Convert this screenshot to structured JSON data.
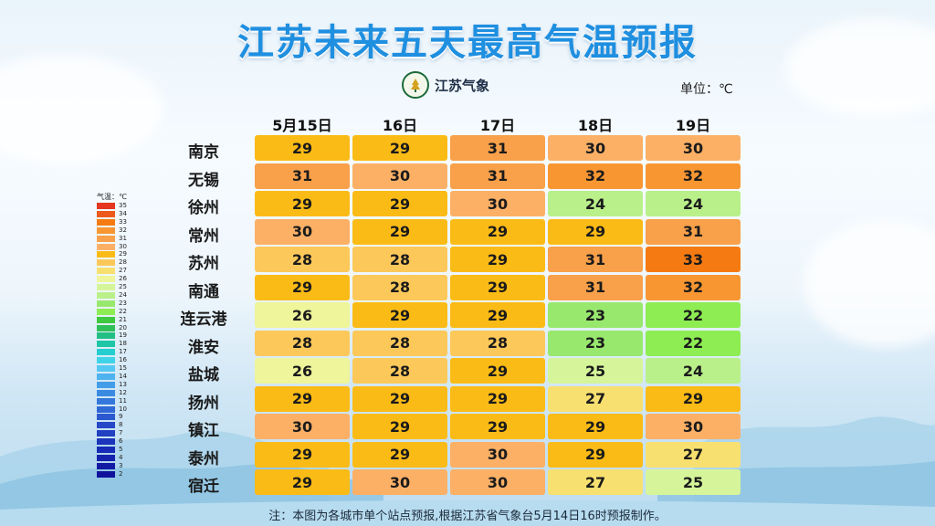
{
  "title": "江苏未来五天最高气温预报",
  "logo_text": "江苏气象",
  "unit_label": "单位：℃",
  "footnote": "注：本图为各城市单个站点预报,根据江苏省气象台5月14日16时预报制作。",
  "legend": {
    "title": "气温：℃",
    "ticks": [
      "35",
      "34",
      "33",
      "32",
      "31",
      "30",
      "29",
      "28",
      "27",
      "26",
      "25",
      "24",
      "23",
      "22",
      "21",
      "20",
      "19",
      "18",
      "17",
      "16",
      "15",
      "14",
      "13",
      "12",
      "11",
      "10",
      "9",
      "8",
      "7",
      "6",
      "5",
      "4",
      "3",
      "2"
    ]
  },
  "colors": {
    "35": "#e5361f",
    "34": "#ee5a1c",
    "33": "#f57a12",
    "32": "#f89632",
    "31": "#f8a04a",
    "30": "#fbb066",
    "29": "#fbbb16",
    "28": "#fcc85a",
    "27": "#f8e070",
    "26": "#eef59a",
    "25": "#d6f59a",
    "24": "#b9f08a",
    "23": "#98e86e",
    "22": "#8ded52",
    "21": "#3ec93e",
    "20": "#2fc05a",
    "19": "#22bf85",
    "18": "#1fc6a6",
    "17": "#25cfd0",
    "16": "#3fd4e8",
    "15": "#54c8f2",
    "14": "#4fb3ef",
    "13": "#449de8",
    "12": "#3a8ae2",
    "11": "#3578dc",
    "10": "#3068d6",
    "9": "#2b58cf",
    "8": "#2648c8",
    "7": "#2140c2",
    "6": "#1c35bc",
    "5": "#182bb6",
    "4": "#1522ad",
    "3": "#121aa4",
    "2": "#0f139b"
  },
  "columns": [
    "5月15日",
    "16日",
    "17日",
    "18日",
    "19日"
  ],
  "rows": [
    {
      "city": "南京",
      "temps": [
        "29",
        "29",
        "31",
        "30",
        "30"
      ]
    },
    {
      "city": "无锡",
      "temps": [
        "31",
        "30",
        "31",
        "32",
        "32"
      ]
    },
    {
      "city": "徐州",
      "temps": [
        "29",
        "29",
        "30",
        "24",
        "24"
      ]
    },
    {
      "city": "常州",
      "temps": [
        "30",
        "29",
        "29",
        "29",
        "31"
      ]
    },
    {
      "city": "苏州",
      "temps": [
        "28",
        "28",
        "29",
        "31",
        "33"
      ]
    },
    {
      "city": "南通",
      "temps": [
        "29",
        "28",
        "29",
        "31",
        "32"
      ]
    },
    {
      "city": "连云港",
      "temps": [
        "26",
        "29",
        "29",
        "23",
        "22"
      ]
    },
    {
      "city": "淮安",
      "temps": [
        "28",
        "28",
        "28",
        "23",
        "22"
      ]
    },
    {
      "city": "盐城",
      "temps": [
        "26",
        "28",
        "29",
        "25",
        "24"
      ]
    },
    {
      "city": "扬州",
      "temps": [
        "29",
        "29",
        "29",
        "27",
        "29"
      ]
    },
    {
      "city": "镇江",
      "temps": [
        "30",
        "29",
        "29",
        "29",
        "30"
      ]
    },
    {
      "city": "泰州",
      "temps": [
        "29",
        "29",
        "30",
        "29",
        "27"
      ]
    },
    {
      "city": "宿迁",
      "temps": [
        "29",
        "30",
        "30",
        "27",
        "25"
      ]
    }
  ]
}
